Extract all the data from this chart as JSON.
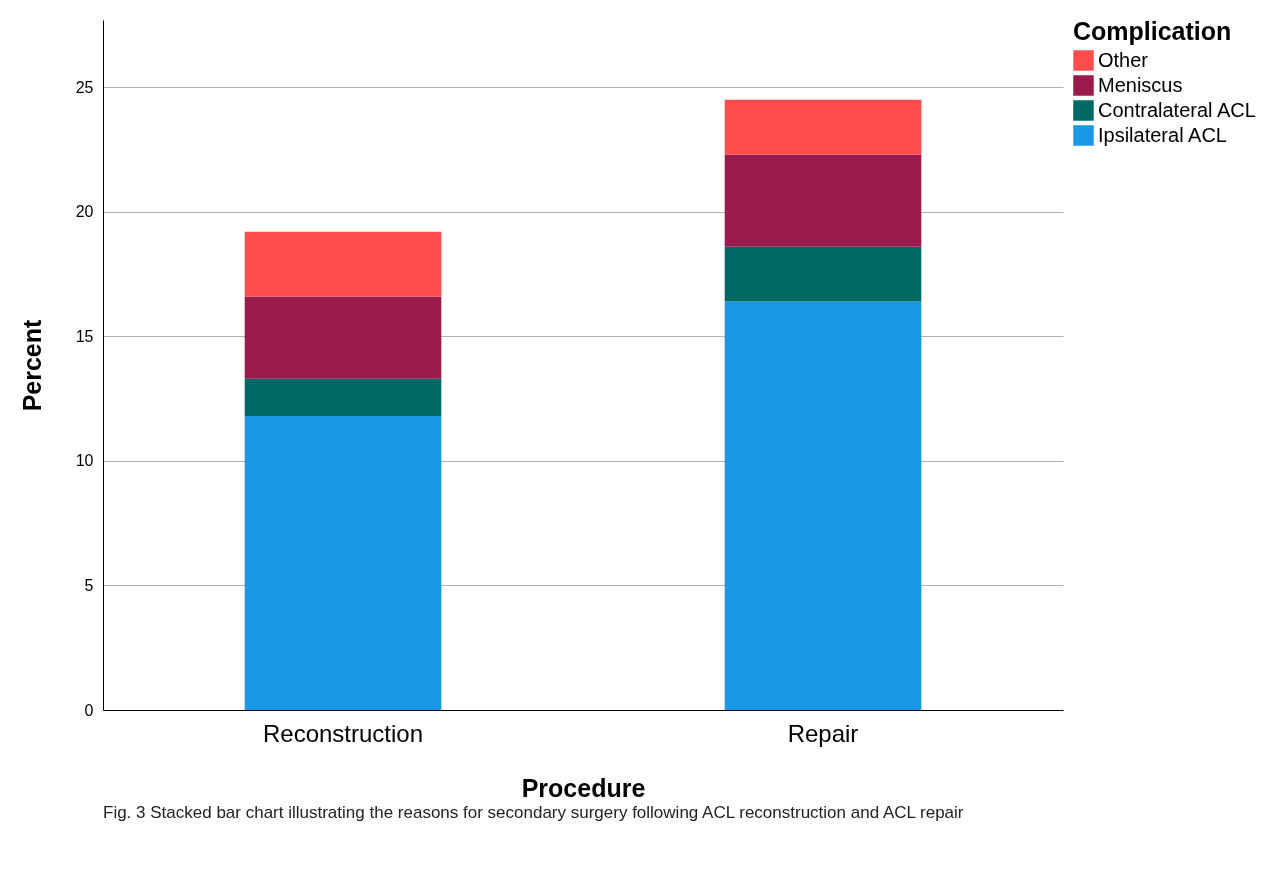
{
  "chart_data": {
    "type": "bar",
    "stacked": true,
    "categories": [
      "Reconstruction",
      "Repair"
    ],
    "series": [
      {
        "name": "Ipsilateral ACL",
        "color": "#1b98e3",
        "values": [
          11.8,
          16.4
        ]
      },
      {
        "name": "Contralateral ACL",
        "color": "#006a66",
        "values": [
          1.5,
          2.2
        ]
      },
      {
        "name": "Meniscus",
        "color": "#9a1a4c",
        "values": [
          3.3,
          3.7
        ]
      },
      {
        "name": "Other",
        "color": "#ff4d4d",
        "values": [
          2.6,
          2.2
        ]
      }
    ],
    "xlabel": "Procedure",
    "ylabel": "Percent",
    "legend_title": "Complication",
    "ylim": [
      0,
      27.7
    ],
    "yticks": [
      0,
      5,
      10,
      15,
      20,
      25
    ],
    "grid": "y",
    "legend": "top right",
    "annotations": [
      "Fig. 3  Stacked bar chart illustrating the reasons for secondary surgery following ACL reconstruction and ACL repair"
    ]
  }
}
